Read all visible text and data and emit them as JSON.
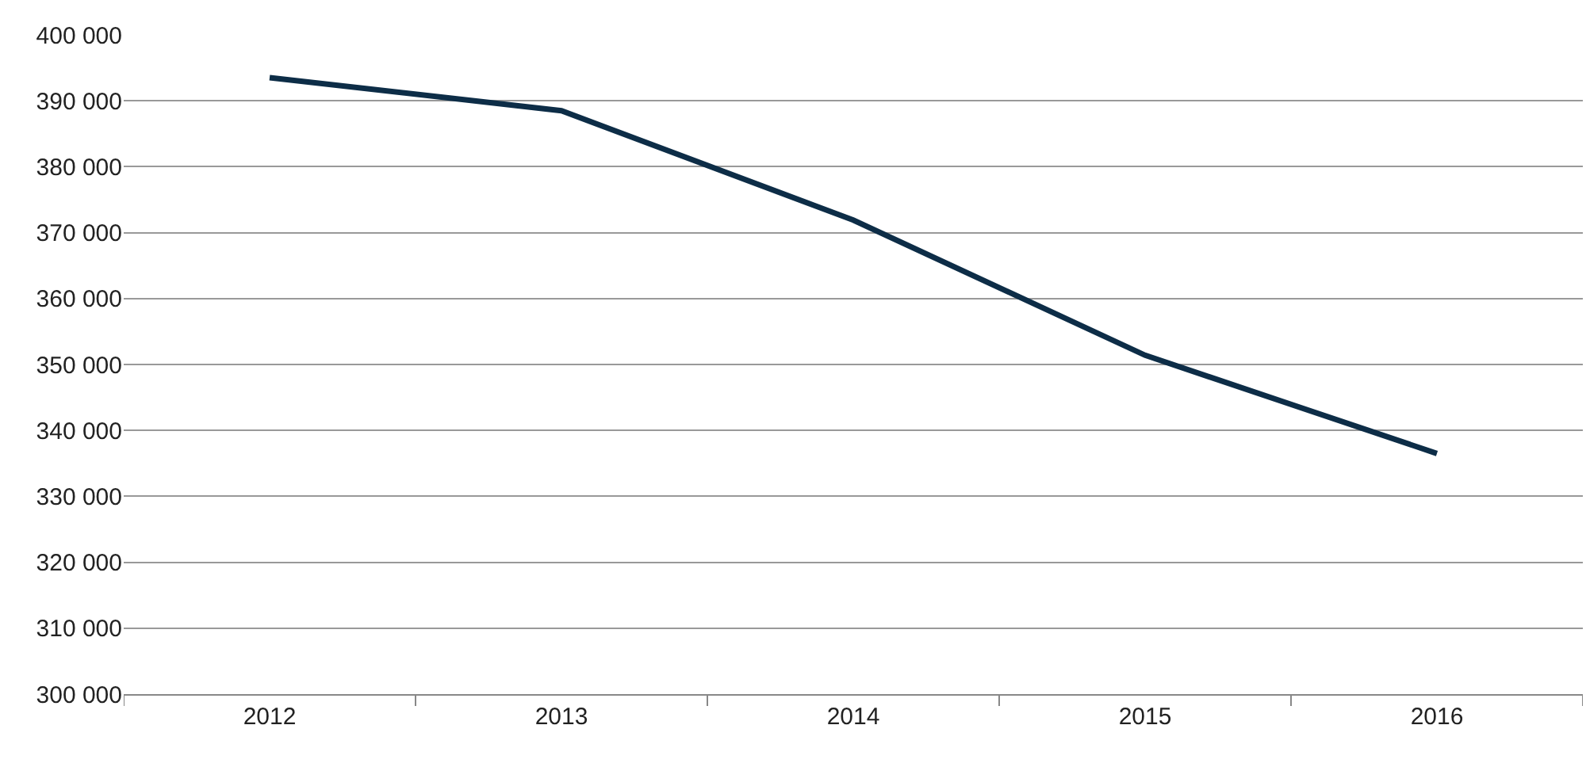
{
  "chart_data": {
    "type": "line",
    "categories": [
      "2012",
      "2013",
      "2014",
      "2015",
      "2016"
    ],
    "series": [
      {
        "color": "#0d2d47",
        "values": [
          393500,
          388500,
          371900,
          351400,
          336500
        ]
      }
    ],
    "ylim": [
      300000,
      400000
    ],
    "yticks": [
      {
        "value": 300000,
        "label": "300 000"
      },
      {
        "value": 310000,
        "label": "310 000"
      },
      {
        "value": 320000,
        "label": "320 000"
      },
      {
        "value": 330000,
        "label": "330 000"
      },
      {
        "value": 340000,
        "label": "340 000"
      },
      {
        "value": 350000,
        "label": "350 000"
      },
      {
        "value": 360000,
        "label": "360 000"
      },
      {
        "value": 370000,
        "label": "370 000"
      },
      {
        "value": 380000,
        "label": "380 000"
      },
      {
        "value": 390000,
        "label": "390 000"
      },
      {
        "value": 400000,
        "label": "400 000"
      }
    ],
    "grid": "y"
  }
}
